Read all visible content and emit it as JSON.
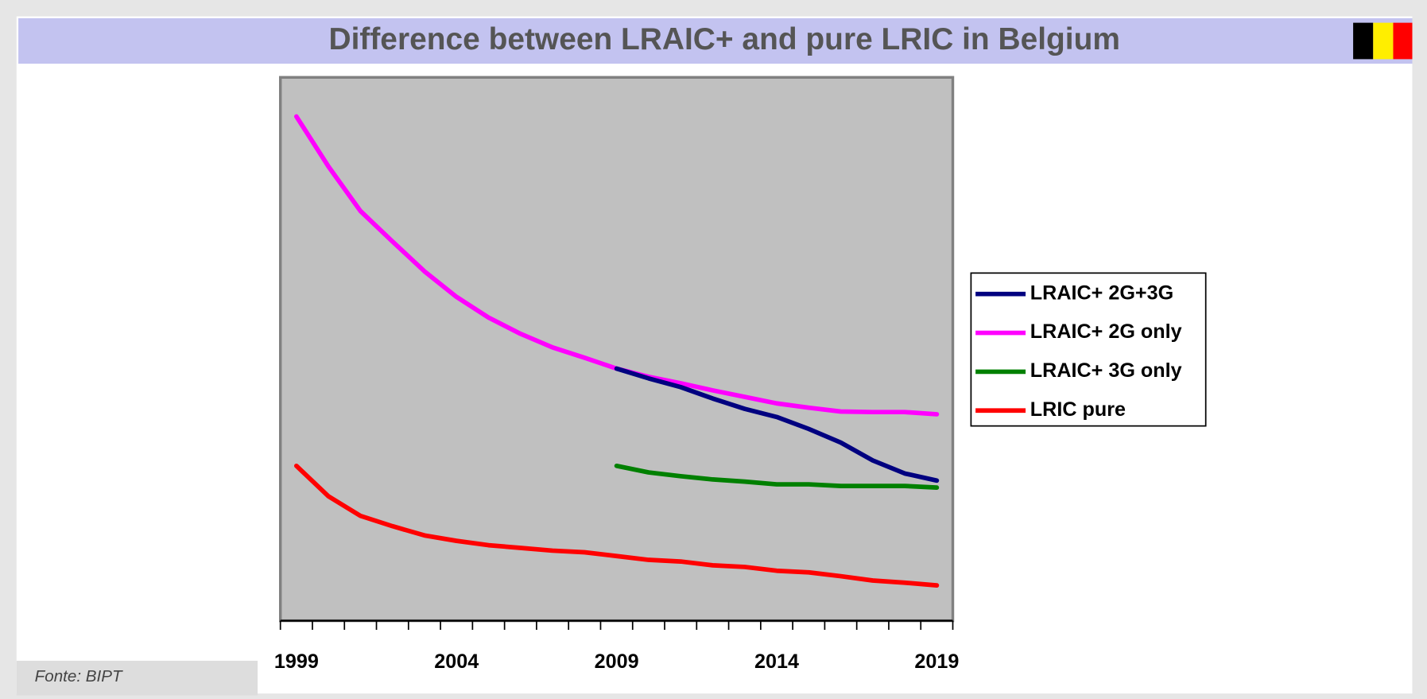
{
  "title": "Difference between LRAIC+ and pure LRIC in Belgium",
  "source": "Fonte: BIPT",
  "chart_data": {
    "type": "line",
    "categories": [
      "1999",
      null,
      null,
      null,
      null,
      "2004",
      null,
      null,
      null,
      null,
      "2009",
      null,
      null,
      null,
      null,
      "2014",
      null,
      null,
      null,
      null,
      "2019"
    ],
    "ylim": [
      0,
      100
    ],
    "legend": "right",
    "plot_background": "#c0c0c0",
    "series": [
      {
        "name": "LRAIC+ 2G+3G",
        "color": "#000080",
        "values": [
          null,
          null,
          null,
          null,
          null,
          null,
          null,
          null,
          null,
          null,
          46.4,
          44.6,
          43.0,
          40.9,
          39.0,
          37.5,
          35.3,
          32.8,
          29.5,
          27.1,
          25.8
        ]
      },
      {
        "name": "LRAIC+ 2G only",
        "color": "#ff00ff",
        "values": [
          92.8,
          83.6,
          75.4,
          69.8,
          64.3,
          59.6,
          55.8,
          52.8,
          50.3,
          48.4,
          46.4,
          44.9,
          43.7,
          42.4,
          41.2,
          40.0,
          39.2,
          38.5,
          38.4,
          38.4,
          38.0
        ]
      },
      {
        "name": "LRAIC+ 3G only",
        "color": "#008000",
        "values": [
          null,
          null,
          null,
          null,
          null,
          null,
          null,
          null,
          null,
          null,
          28.5,
          27.3,
          26.6,
          26.0,
          25.6,
          25.1,
          25.1,
          24.8,
          24.8,
          24.8,
          24.5
        ]
      },
      {
        "name": "LRIC pure",
        "color": "#ff0000",
        "values": [
          28.5,
          22.9,
          19.3,
          17.4,
          15.7,
          14.7,
          13.9,
          13.4,
          12.9,
          12.6,
          11.9,
          11.2,
          10.9,
          10.2,
          9.9,
          9.2,
          8.9,
          8.2,
          7.4,
          7.0,
          6.5
        ]
      }
    ]
  }
}
